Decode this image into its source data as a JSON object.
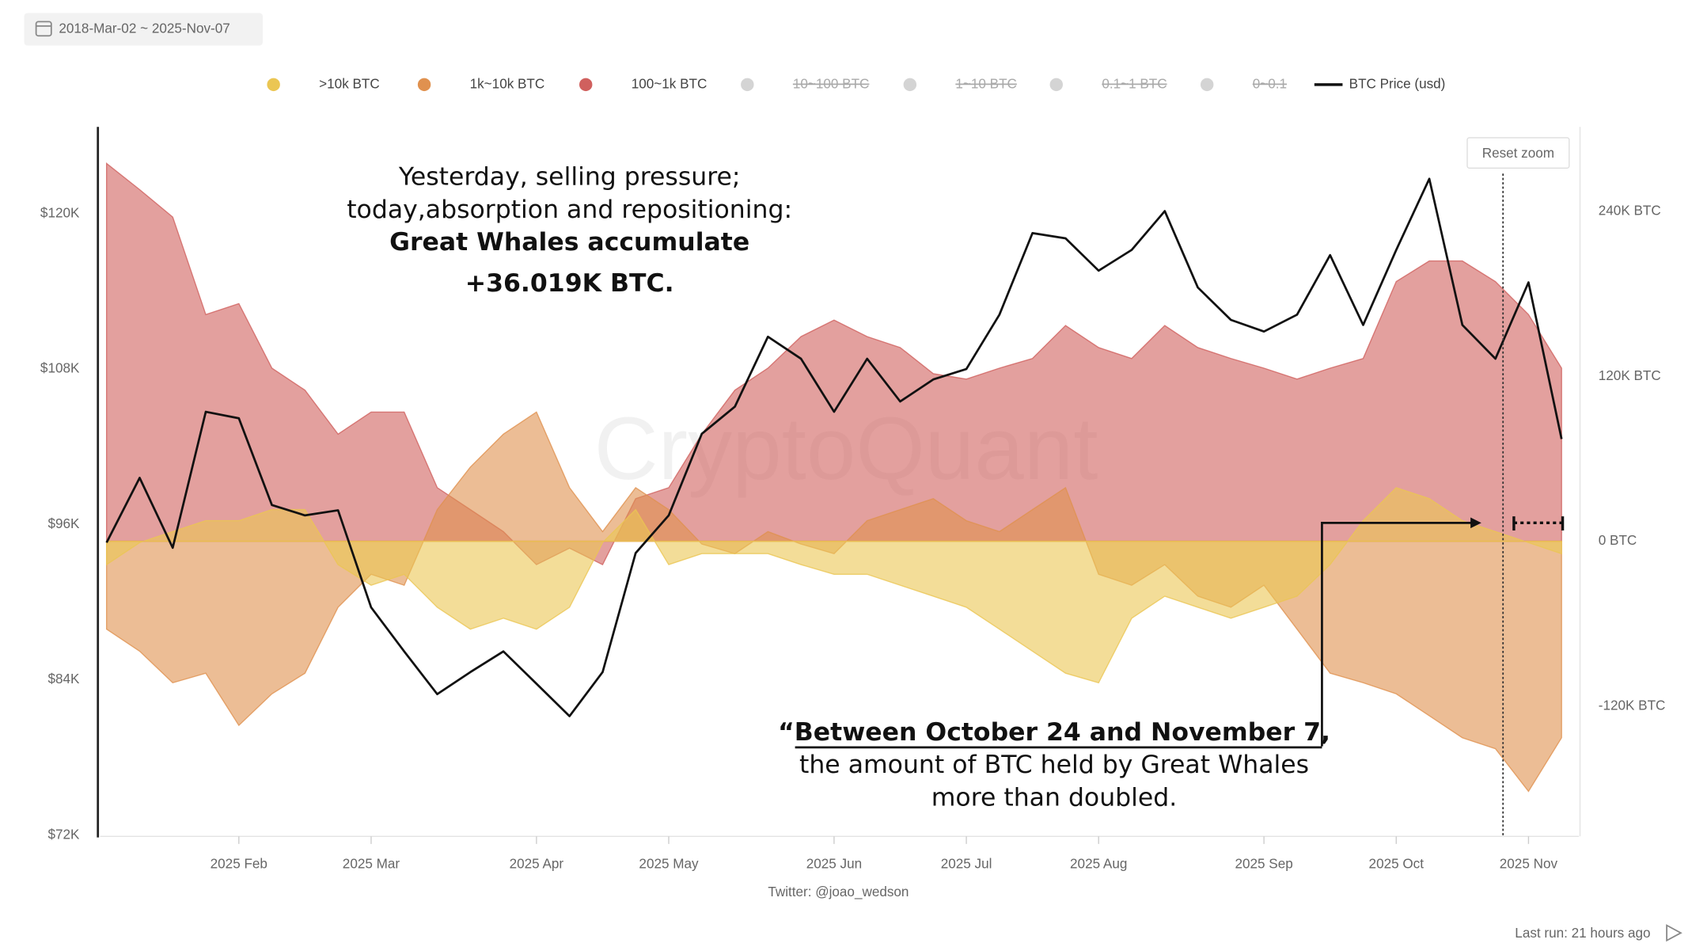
{
  "toolbar": {
    "date_range": "2018-Mar-02 ~ 2025-Nov-07",
    "reset_zoom": "Reset zoom"
  },
  "footer": {
    "credit": "Twitter: @joao_wedson",
    "last_run": "Last run: 21 hours ago"
  },
  "chart_data": {
    "type": "area",
    "watermark": "CryptoQuant",
    "annotations": {
      "top": [
        "Yesterday, selling pressure;",
        "today,absorption and repositioning:",
        "Great Whales accumulate",
        "+36.019K BTC."
      ],
      "bottom": [
        "“Between October 24 and November 7,",
        "the amount of BTC held by Great Whales",
        "more than doubled."
      ]
    },
    "categories": [
      null,
      null,
      null,
      null,
      "2025 Feb",
      null,
      null,
      null,
      "2025 Mar",
      null,
      null,
      null,
      null,
      "2025 Apr",
      null,
      null,
      null,
      "2025 May",
      null,
      null,
      null,
      null,
      "2025 Jun",
      null,
      null,
      null,
      "2025 Jul",
      null,
      null,
      null,
      "2025 Aug",
      null,
      null,
      null,
      null,
      "2025 Sep",
      null,
      null,
      null,
      "2025 Oct",
      null,
      null,
      null,
      "2025 Nov",
      null
    ],
    "series": [
      {
        "name": ">10k BTC",
        "color": "#ebc653",
        "axis": "y2",
        "values": [
          -17000,
          -1000,
          7000,
          15000,
          15000,
          23000,
          23000,
          -17000,
          -32000,
          -24000,
          -48000,
          -64000,
          -56000,
          -64000,
          -48000,
          -1000,
          23000,
          -17000,
          -9000,
          -9000,
          -9000,
          -17000,
          -24000,
          -24000,
          -32000,
          -40000,
          -48000,
          -64000,
          -80000,
          -96000,
          -103000,
          -56000,
          -40000,
          -48000,
          -56000,
          -48000,
          -40000,
          -17000,
          15000,
          39000,
          31000,
          15000,
          7000,
          -1000,
          -9000
        ]
      },
      {
        "name": "1k~10k BTC",
        "color": "#e0914f",
        "axis": "y2",
        "values": [
          -64000,
          -80000,
          -103000,
          -96000,
          -134000,
          -111000,
          -96000,
          -48000,
          -24000,
          -32000,
          23000,
          54000,
          78000,
          94000,
          39000,
          7000,
          39000,
          23000,
          -2000,
          -9000,
          7000,
          -2000,
          -9000,
          15000,
          23000,
          31000,
          15000,
          7000,
          23000,
          39000,
          -24000,
          -32000,
          -17000,
          -40000,
          -48000,
          -32000,
          -64000,
          -96000,
          -103000,
          -111000,
          -127000,
          -143000,
          -151000,
          -182000,
          -143000
        ]
      },
      {
        "name": "100~1k BTC",
        "color": "#d0605e",
        "axis": "y2",
        "values": [
          275000,
          256000,
          236000,
          165000,
          173000,
          126000,
          110000,
          78000,
          94000,
          94000,
          39000,
          23000,
          7000,
          -17000,
          -5000,
          -17000,
          31000,
          39000,
          78000,
          110000,
          126000,
          149000,
          161000,
          149000,
          141000,
          122000,
          118000,
          126000,
          133000,
          157000,
          141000,
          133000,
          157000,
          141000,
          133000,
          126000,
          118000,
          126000,
          133000,
          189000,
          204000,
          204000,
          189000,
          165000,
          126000
        ]
      },
      {
        "name": "BTC Price (usd)",
        "color": "#111111",
        "type": "line",
        "axis": "y",
        "values": [
          94600,
          99600,
          94200,
          104700,
          104200,
          97500,
          96700,
          97100,
          89600,
          86200,
          82900,
          84600,
          86200,
          83700,
          81200,
          84600,
          93800,
          96700,
          103000,
          105100,
          110500,
          108800,
          104700,
          108800,
          105500,
          107200,
          108000,
          112200,
          118500,
          118100,
          115600,
          117200,
          120200,
          114300,
          111800,
          110900,
          112200,
          116800,
          111400,
          117200,
          122700,
          111400,
          108800,
          114700,
          102600
        ]
      }
    ],
    "legend_hidden": [
      "10~100 BTC",
      "1~10 BTC",
      "0.1~1 BTC",
      "0~0.1"
    ],
    "hidden_color": "#d4d4d4",
    "ylim": [
      72000,
      126700
    ],
    "yticks": [
      {
        "value": 72000,
        "label": "$72K"
      },
      {
        "value": 84000,
        "label": "$84K"
      },
      {
        "value": 96000,
        "label": "$96K"
      },
      {
        "value": 108000,
        "label": "$108K"
      },
      {
        "value": 120000,
        "label": "$120K"
      }
    ],
    "y2lim": [
      -214000,
      301600
    ],
    "y2ticks": [
      {
        "value": -120000,
        "label": "-120K BTC"
      },
      {
        "value": 0,
        "label": "0 BTC"
      },
      {
        "value": 120000,
        "label": "120K BTC"
      },
      {
        "value": 240000,
        "label": "240K BTC"
      }
    ],
    "grid": false,
    "legend": "top"
  }
}
